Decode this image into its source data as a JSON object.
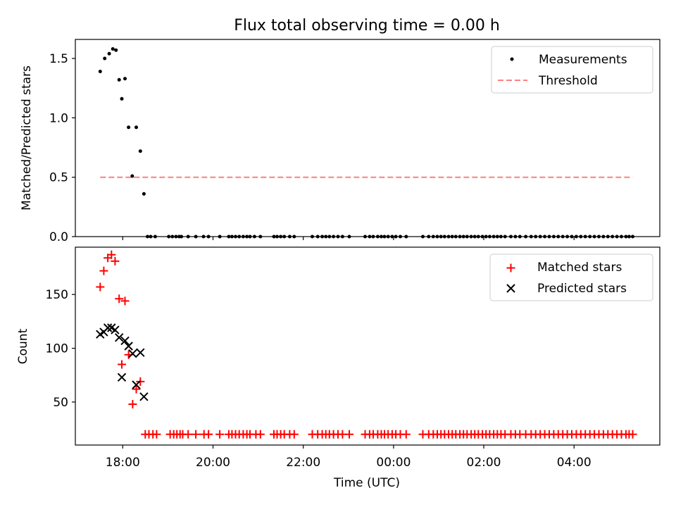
{
  "chart_data": {
    "title": "Flux total observing time = 0.00 h",
    "x_axis": {
      "label": "Time (UTC)",
      "range_hours": [
        16.95,
        29.9
      ],
      "ticks": [
        {
          "h": 18,
          "label": "18:00"
        },
        {
          "h": 20,
          "label": "20:00"
        },
        {
          "h": 22,
          "label": "22:00"
        },
        {
          "h": 24,
          "label": "00:00"
        },
        {
          "h": 26,
          "label": "02:00"
        },
        {
          "h": 28,
          "label": "04:00"
        }
      ]
    },
    "panels": [
      {
        "type": "scatter",
        "ylabel": "Matched/Predicted stars",
        "ylim": [
          0.0,
          1.66
        ],
        "yticks": [
          {
            "v": 0.0,
            "label": "0.0"
          },
          {
            "v": 0.5,
            "label": "0.5"
          },
          {
            "v": 1.0,
            "label": "1.0"
          },
          {
            "v": 1.5,
            "label": "1.5"
          }
        ],
        "legend": {
          "position": "top-right",
          "entries": [
            "Measurements",
            "Threshold"
          ]
        },
        "threshold": {
          "label": "Threshold",
          "value": 0.5,
          "x_range": [
            17.5,
            29.3
          ],
          "color": "#ff8080"
        },
        "series": [
          {
            "name": "Measurements",
            "marker": "dot",
            "color": "#000000",
            "points": [
              [
                17.5,
                1.39
              ],
              [
                17.6,
                1.5
              ],
              [
                17.7,
                1.54
              ],
              [
                17.78,
                1.58
              ],
              [
                17.85,
                1.57
              ],
              [
                17.92,
                1.32
              ],
              [
                17.98,
                1.16
              ],
              [
                18.05,
                1.33
              ],
              [
                18.13,
                0.92
              ],
              [
                18.21,
                0.51
              ],
              [
                18.3,
                0.92
              ],
              [
                18.39,
                0.72
              ],
              [
                18.47,
                0.36
              ]
            ],
            "zero_hours": [
              18.55,
              18.62,
              18.72,
              19.02,
              19.1,
              19.18,
              19.25,
              19.3,
              19.45,
              19.62,
              19.79,
              19.9,
              20.15,
              20.35,
              20.42,
              20.5,
              20.58,
              20.67,
              20.75,
              20.82,
              20.92,
              21.05,
              21.35,
              21.42,
              21.5,
              21.58,
              21.7,
              21.8,
              22.2,
              22.32,
              22.42,
              22.5,
              22.58,
              22.67,
              22.77,
              22.87,
              23.02,
              23.37,
              23.47,
              23.55,
              23.65,
              23.73,
              23.8,
              23.88,
              23.97,
              24.05,
              24.15,
              24.28,
              24.65,
              24.78,
              24.88,
              24.97,
              25.05,
              25.13,
              25.22,
              25.3,
              25.38,
              25.47,
              25.55,
              25.63,
              25.72,
              25.8,
              25.88,
              25.97,
              26.05,
              26.13,
              26.22,
              26.3,
              26.38,
              26.47,
              26.6,
              26.7,
              26.8,
              26.93,
              27.05,
              27.15,
              27.25,
              27.35,
              27.45,
              27.55,
              27.65,
              27.75,
              27.85,
              27.95,
              28.05,
              28.15,
              28.25,
              28.35,
              28.45,
              28.55,
              28.65,
              28.75,
              28.85,
              28.95,
              29.05,
              29.15,
              29.22,
              29.3
            ]
          }
        ]
      },
      {
        "type": "scatter",
        "ylabel": "Count",
        "ylim": [
          10,
          194
        ],
        "yticks": [
          {
            "v": 50,
            "label": "50"
          },
          {
            "v": 100,
            "label": "100"
          },
          {
            "v": 150,
            "label": "150"
          }
        ],
        "legend": {
          "position": "top-right",
          "entries": [
            "Matched stars",
            "Predicted stars"
          ]
        },
        "series": [
          {
            "name": "Matched stars",
            "marker": "plus",
            "color": "#ff0000",
            "points": [
              [
                17.5,
                157
              ],
              [
                17.58,
                172
              ],
              [
                17.67,
                184
              ],
              [
                17.75,
                187
              ],
              [
                17.83,
                181
              ],
              [
                17.92,
                146
              ],
              [
                17.98,
                85
              ],
              [
                18.05,
                144
              ],
              [
                18.13,
                94
              ],
              [
                18.22,
                48
              ],
              [
                18.3,
                62
              ],
              [
                18.39,
                69
              ]
            ],
            "baseline_value": 20,
            "baseline_hours": [
              18.5,
              18.58,
              18.67,
              18.75,
              19.05,
              19.13,
              19.2,
              19.27,
              19.33,
              19.45,
              19.62,
              19.8,
              19.9,
              20.15,
              20.35,
              20.42,
              20.5,
              20.58,
              20.67,
              20.75,
              20.82,
              20.95,
              21.05,
              21.35,
              21.42,
              21.5,
              21.58,
              21.7,
              21.8,
              22.2,
              22.32,
              22.42,
              22.5,
              22.58,
              22.67,
              22.77,
              22.87,
              23.02,
              23.37,
              23.47,
              23.55,
              23.65,
              23.73,
              23.8,
              23.88,
              23.97,
              24.05,
              24.15,
              24.28,
              24.65,
              24.78,
              24.88,
              24.97,
              25.05,
              25.13,
              25.22,
              25.3,
              25.38,
              25.47,
              25.55,
              25.63,
              25.72,
              25.8,
              25.88,
              25.97,
              26.05,
              26.13,
              26.22,
              26.3,
              26.38,
              26.47,
              26.6,
              26.7,
              26.8,
              26.93,
              27.05,
              27.15,
              27.25,
              27.35,
              27.45,
              27.55,
              27.65,
              27.75,
              27.85,
              27.95,
              28.05,
              28.15,
              28.25,
              28.35,
              28.45,
              28.55,
              28.65,
              28.75,
              28.85,
              28.95,
              29.05,
              29.15,
              29.22,
              29.3
            ]
          },
          {
            "name": "Predicted stars",
            "marker": "x",
            "color": "#000000",
            "points": [
              [
                17.5,
                113
              ],
              [
                17.58,
                115
              ],
              [
                17.67,
                119
              ],
              [
                17.75,
                119
              ],
              [
                17.83,
                117
              ],
              [
                17.92,
                110
              ],
              [
                17.98,
                73
              ],
              [
                18.05,
                107
              ],
              [
                18.13,
                102
              ],
              [
                18.22,
                95
              ],
              [
                18.3,
                66
              ],
              [
                18.39,
                96
              ],
              [
                18.47,
                55
              ]
            ]
          }
        ]
      }
    ]
  }
}
